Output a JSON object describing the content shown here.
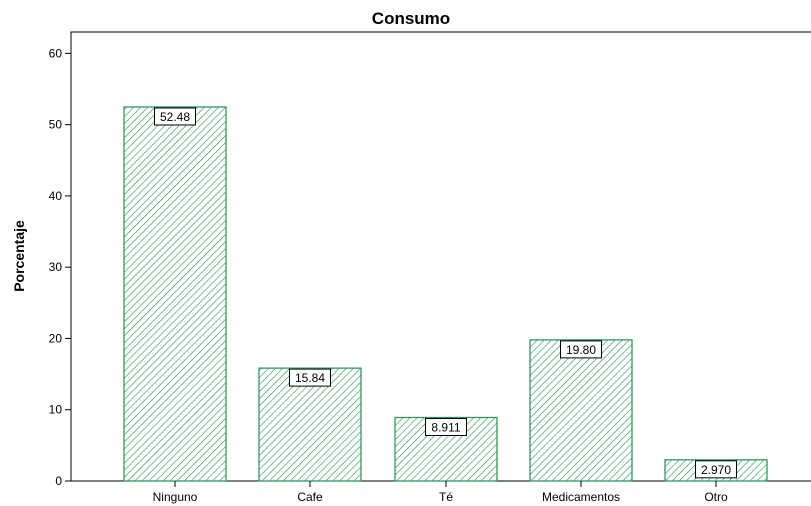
{
  "chart_data": {
    "type": "bar",
    "title": "Consumo",
    "xlabel": "",
    "ylabel": "Porcentaje",
    "categories": [
      "Ninguno",
      "Cafe",
      "Té",
      "Medicamentos",
      "Otro"
    ],
    "values": [
      52.48,
      15.84,
      8.911,
      19.8,
      2.97
    ],
    "data_labels": [
      "52.48",
      "15.84",
      "8.911",
      "19.80",
      "2.970"
    ],
    "ylim": [
      0,
      63
    ],
    "yticks": [
      0,
      10,
      20,
      30,
      40,
      50,
      60
    ],
    "grid": false,
    "bar_fill": "hatched",
    "bar_color": "#2e9a5c"
  }
}
